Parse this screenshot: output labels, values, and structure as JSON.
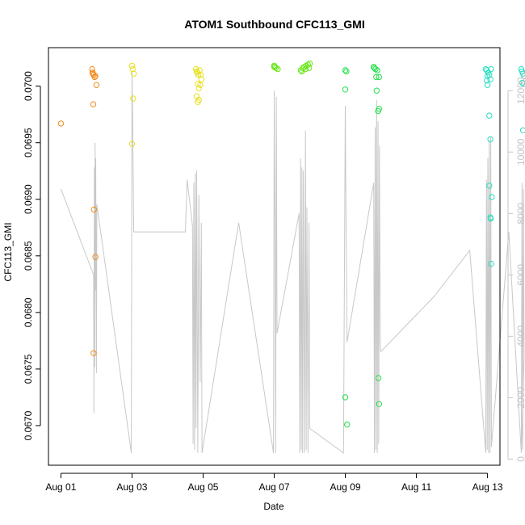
{
  "chart_data": {
    "type": "scatter",
    "title": "ATOM1 Southbound CFC113_GMI",
    "xlabel": "Date",
    "ylabel": "CFC113_GMI",
    "x_unit": "days since Aug 01",
    "xlim": [
      -0.35,
      12.35
    ],
    "ylim": [
      0.06665,
      0.07034
    ],
    "y2lim": [
      -200,
      13400
    ],
    "x_ticks": [
      {
        "value": 0,
        "label": "Aug 01"
      },
      {
        "value": 2,
        "label": "Aug 03"
      },
      {
        "value": 4,
        "label": "Aug 05"
      },
      {
        "value": 6,
        "label": "Aug 07"
      },
      {
        "value": 8,
        "label": "Aug 09"
      },
      {
        "value": 10,
        "label": "Aug 11"
      },
      {
        "value": 12,
        "label": "Aug 13"
      }
    ],
    "y_ticks": [
      {
        "value": 0.067,
        "label": "0.0670"
      },
      {
        "value": 0.0675,
        "label": "0.0675"
      },
      {
        "value": 0.068,
        "label": "0.0680"
      },
      {
        "value": 0.0685,
        "label": "0.0685"
      },
      {
        "value": 0.069,
        "label": "0.0690"
      },
      {
        "value": 0.0695,
        "label": "0.0695"
      },
      {
        "value": 0.07,
        "label": "0.0700"
      }
    ],
    "y2_ticks": [
      {
        "value": 0,
        "label": "0"
      },
      {
        "value": 2000,
        "label": "2000"
      },
      {
        "value": 4000,
        "label": "4000"
      },
      {
        "value": 6000,
        "label": "6000"
      },
      {
        "value": 8000,
        "label": "8000"
      },
      {
        "value": 10000,
        "label": "10000"
      },
      {
        "value": 12000,
        "label": "12000"
      }
    ],
    "series": [
      {
        "color": "#f28c1e",
        "points": [
          [
            0.0,
            0.06967
          ],
          [
            0.88,
            0.07015
          ],
          [
            0.89,
            0.07012
          ],
          [
            0.9,
            0.07011
          ],
          [
            0.92,
            0.0701
          ],
          [
            0.95,
            0.07008
          ],
          [
            0.97,
            0.07009
          ],
          [
            1.0,
            0.07001
          ],
          [
            0.91,
            0.06984
          ],
          [
            0.93,
            0.06891
          ],
          [
            0.97,
            0.06849
          ],
          [
            0.92,
            0.06764
          ]
        ]
      },
      {
        "color": "#e6e020",
        "points": [
          [
            2.0,
            0.07018
          ],
          [
            2.02,
            0.07015
          ],
          [
            2.05,
            0.07011
          ],
          [
            2.03,
            0.06989
          ],
          [
            2.0,
            0.06949
          ],
          [
            3.8,
            0.07015
          ],
          [
            3.82,
            0.07013
          ],
          [
            3.84,
            0.07012
          ],
          [
            3.86,
            0.0701
          ],
          [
            3.9,
            0.07014
          ],
          [
            3.93,
            0.0701
          ],
          [
            3.95,
            0.07006
          ],
          [
            3.85,
            0.07002
          ],
          [
            3.92,
            0.07001
          ],
          [
            3.88,
            0.06998
          ],
          [
            3.82,
            0.06991
          ],
          [
            3.88,
            0.06988
          ],
          [
            3.85,
            0.06986
          ]
        ]
      },
      {
        "color": "#66e614",
        "points": [
          [
            6.0,
            0.07018
          ],
          [
            6.02,
            0.07017
          ],
          [
            6.05,
            0.07016
          ],
          [
            6.1,
            0.07015
          ],
          [
            6.0,
            0.07017
          ],
          [
            6.75,
            0.07014
          ],
          [
            6.8,
            0.07016
          ],
          [
            6.85,
            0.07017
          ],
          [
            6.9,
            0.07018
          ],
          [
            6.95,
            0.07019
          ],
          [
            7.0,
            0.0702
          ],
          [
            6.78,
            0.07013
          ],
          [
            6.88,
            0.07015
          ],
          [
            6.98,
            0.07016
          ]
        ]
      },
      {
        "color": "#22e04a",
        "points": [
          [
            8.0,
            0.07014
          ],
          [
            8.03,
            0.07013
          ],
          [
            8.0,
            0.06997
          ],
          [
            8.8,
            0.07017
          ],
          [
            8.82,
            0.07016
          ],
          [
            8.85,
            0.07015
          ],
          [
            8.9,
            0.07014
          ],
          [
            8.87,
            0.07008
          ],
          [
            8.95,
            0.07008
          ],
          [
            8.88,
            0.06996
          ],
          [
            8.95,
            0.0698
          ],
          [
            8.92,
            0.06978
          ],
          [
            8.93,
            0.06742
          ],
          [
            8.0,
            0.06725
          ],
          [
            8.95,
            0.06719
          ],
          [
            8.05,
            0.06701
          ]
        ]
      },
      {
        "color": "#29dec0",
        "points": [
          [
            11.95,
            0.07015
          ],
          [
            11.98,
            0.07014
          ],
          [
            12.02,
            0.07012
          ],
          [
            12.05,
            0.0701
          ],
          [
            12.1,
            0.07015
          ],
          [
            12.0,
            0.07009
          ],
          [
            12.08,
            0.07006
          ],
          [
            11.98,
            0.07005
          ],
          [
            12.0,
            0.07001
          ],
          [
            12.05,
            0.06974
          ],
          [
            12.08,
            0.06953
          ],
          [
            12.05,
            0.06912
          ],
          [
            12.12,
            0.06902
          ],
          [
            12.08,
            0.06884
          ],
          [
            12.09,
            0.06883
          ],
          [
            12.1,
            0.06843
          ],
          [
            12.95,
            0.07015
          ],
          [
            12.97,
            0.07013
          ],
          [
            13.0,
            0.07011
          ],
          [
            13.03,
            0.07009
          ],
          [
            12.98,
            0.07003
          ],
          [
            13.02,
            0.07002
          ],
          [
            13.0,
            0.06961
          ]
        ]
      }
    ],
    "secondary_series": {
      "color": "#c8c8c8",
      "points": [
        [
          0.0,
          8800
        ],
        [
          0.92,
          6000
        ],
        [
          0.93,
          1500
        ],
        [
          0.94,
          9500
        ],
        [
          0.95,
          3000
        ],
        [
          0.96,
          10300
        ],
        [
          0.97,
          5500
        ],
        [
          0.98,
          9800
        ],
        [
          1.0,
          2800
        ],
        [
          1.01,
          8300
        ],
        [
          1.98,
          200
        ],
        [
          2.0,
          12600
        ],
        [
          2.02,
          11000
        ],
        [
          2.05,
          7400
        ],
        [
          3.5,
          7400
        ],
        [
          3.55,
          9100
        ],
        [
          3.7,
          7600
        ],
        [
          3.72,
          500
        ],
        [
          3.74,
          9000
        ],
        [
          3.76,
          300
        ],
        [
          3.78,
          9300
        ],
        [
          3.8,
          1000
        ],
        [
          3.82,
          9400
        ],
        [
          3.85,
          200
        ],
        [
          3.88,
          8600
        ],
        [
          3.9,
          5000
        ],
        [
          3.92,
          2500
        ],
        [
          3.95,
          7700
        ],
        [
          3.97,
          200
        ],
        [
          5.0,
          7700
        ],
        [
          5.98,
          200
        ],
        [
          6.0,
          12000
        ],
        [
          6.02,
          7600
        ],
        [
          6.04,
          200
        ],
        [
          6.06,
          11800
        ],
        [
          6.08,
          4100
        ],
        [
          6.7,
          8000
        ],
        [
          6.72,
          200
        ],
        [
          6.74,
          9800
        ],
        [
          6.76,
          300
        ],
        [
          6.78,
          9500
        ],
        [
          6.8,
          200
        ],
        [
          6.82,
          9400
        ],
        [
          6.85,
          200
        ],
        [
          6.88,
          10700
        ],
        [
          6.9,
          300
        ],
        [
          6.92,
          8200
        ],
        [
          6.95,
          200
        ],
        [
          6.98,
          7700
        ],
        [
          7.0,
          1000
        ],
        [
          7.95,
          200
        ],
        [
          8.0,
          11500
        ],
        [
          8.02,
          7800
        ],
        [
          8.05,
          3800
        ],
        [
          8.8,
          9000
        ],
        [
          8.82,
          200
        ],
        [
          8.84,
          10800
        ],
        [
          8.86,
          300
        ],
        [
          8.88,
          11700
        ],
        [
          8.9,
          200
        ],
        [
          8.92,
          11000
        ],
        [
          8.94,
          500
        ],
        [
          8.96,
          10200
        ],
        [
          8.98,
          3800
        ],
        [
          9.0,
          3500
        ],
        [
          10.5,
          5300
        ],
        [
          11.5,
          6800
        ],
        [
          11.95,
          200
        ],
        [
          11.97,
          9100
        ],
        [
          11.99,
          300
        ],
        [
          12.01,
          9800
        ],
        [
          12.03,
          200
        ],
        [
          12.05,
          10400
        ],
        [
          12.07,
          200
        ],
        [
          12.09,
          10500
        ],
        [
          12.11,
          400
        ],
        [
          12.6,
          7400
        ],
        [
          12.95,
          200
        ],
        [
          12.97,
          9000
        ],
        [
          12.99,
          300
        ],
        [
          13.01,
          8800
        ],
        [
          13.03,
          3300
        ],
        [
          12.95,
          200
        ]
      ]
    }
  }
}
